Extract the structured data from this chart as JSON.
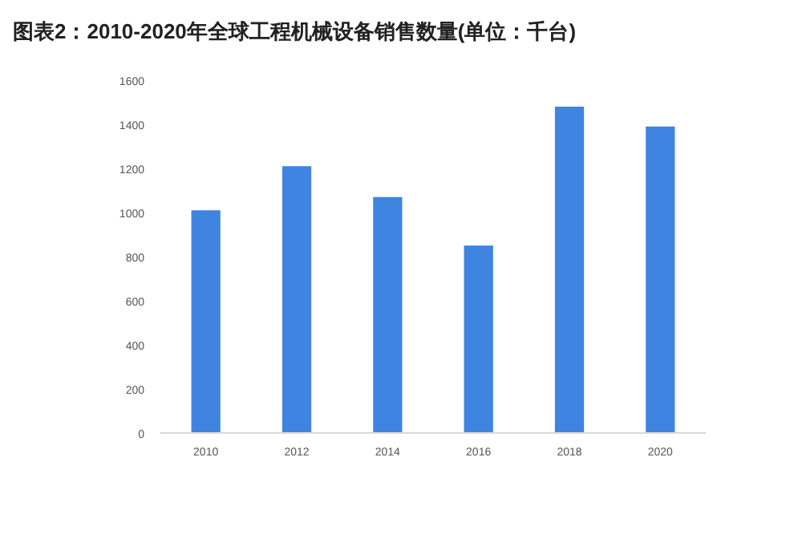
{
  "chart_data": {
    "type": "bar",
    "title": "图表2：2010-2020年全球工程机械设备销售数量(单位：千台)",
    "categories": [
      "2010",
      "2012",
      "2014",
      "2016",
      "2018",
      "2020"
    ],
    "values": [
      1010,
      1210,
      1070,
      850,
      1480,
      1390
    ],
    "color": "#3f84e0",
    "ylim": [
      0,
      1600
    ],
    "yticks": [
      0,
      200,
      400,
      600,
      800,
      1000,
      1200,
      1400,
      1600
    ]
  }
}
